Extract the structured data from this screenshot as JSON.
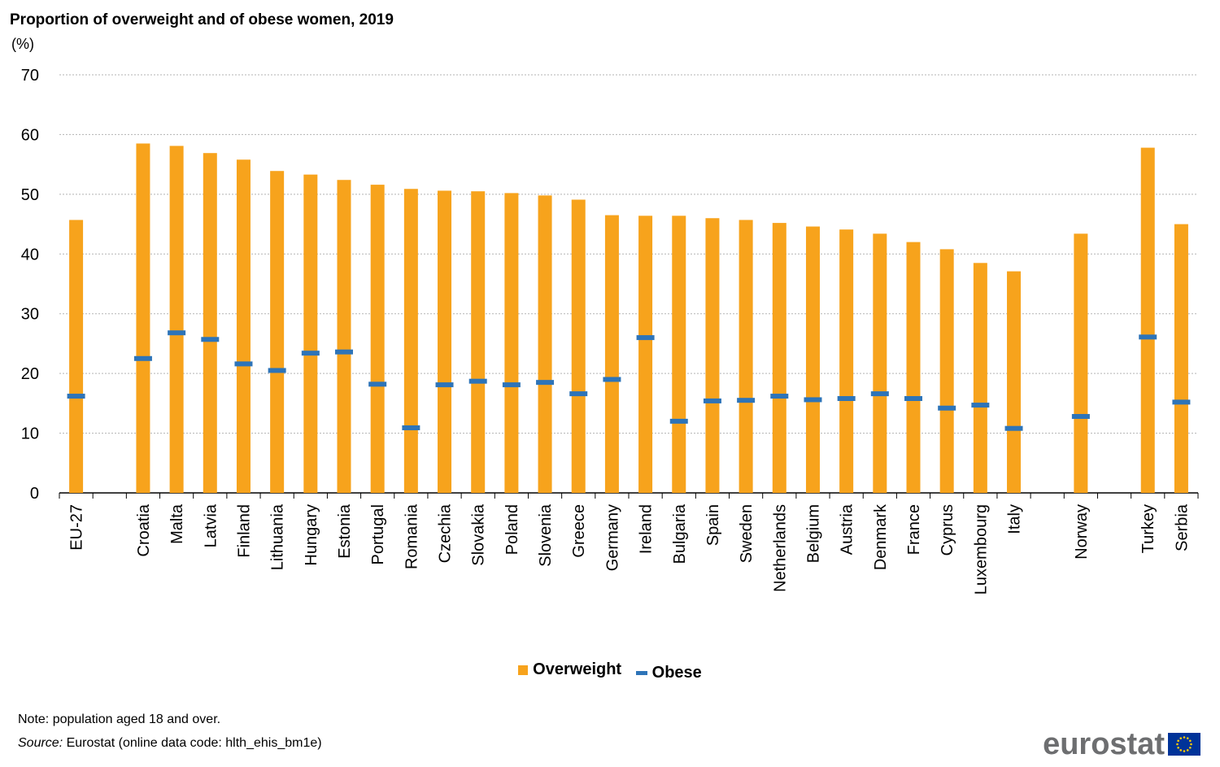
{
  "chart_data": {
    "type": "bar",
    "title": "Proportion of overweight and of obese women, 2019",
    "ylabel": "(%)",
    "ylim": [
      0,
      70
    ],
    "yticks": [
      0,
      10,
      20,
      30,
      40,
      50,
      60,
      70
    ],
    "categories": [
      "EU-27",
      "",
      "Croatia",
      "Malta",
      "Latvia",
      "Finland",
      "Lithuania",
      "Hungary",
      "Estonia",
      "Portugal",
      "Romania",
      "Czechia",
      "Slovakia",
      "Poland",
      "Slovenia",
      "Greece",
      "Germany",
      "Ireland",
      "Bulgaria",
      "Spain",
      "Sweden",
      "Netherlands",
      "Belgium",
      "Austria",
      "Denmark",
      "France",
      "Cyprus",
      "Luxembourg",
      "Italy",
      "",
      "Norway",
      "",
      "Turkey",
      "Serbia"
    ],
    "series": [
      {
        "name": "Overweight",
        "kind": "bar",
        "color": "#f7a31c",
        "values": [
          45.7,
          null,
          58.5,
          58.1,
          56.9,
          55.8,
          53.9,
          53.3,
          52.4,
          51.6,
          50.9,
          50.6,
          50.5,
          50.2,
          49.8,
          49.1,
          46.5,
          46.4,
          46.4,
          46.0,
          45.7,
          45.2,
          44.6,
          44.1,
          43.4,
          42.0,
          40.8,
          38.5,
          37.1,
          null,
          43.4,
          null,
          57.8,
          45.0
        ]
      },
      {
        "name": "Obese",
        "kind": "marker",
        "color": "#2e74b8",
        "values": [
          16.2,
          null,
          22.5,
          26.8,
          25.7,
          21.6,
          20.5,
          23.4,
          23.6,
          18.2,
          10.9,
          18.1,
          18.7,
          18.1,
          18.5,
          16.6,
          19.0,
          26.0,
          12.0,
          15.4,
          15.5,
          16.2,
          15.6,
          15.8,
          16.6,
          15.8,
          14.2,
          14.7,
          10.8,
          null,
          12.8,
          null,
          26.1,
          15.2
        ]
      }
    ]
  },
  "legend": {
    "overweight_label": "Overweight",
    "obese_label": "Obese"
  },
  "footer": {
    "note": "Note: population aged 18 and over.",
    "source_label": "Source:",
    "source_text": " Eurostat (online data code: hlth_ehis_bm1e)"
  },
  "logo": {
    "text": "eurostat"
  },
  "colors": {
    "bar": "#f7a31c",
    "marker": "#2e74b8",
    "grid": "#b3b3b3",
    "logo_text": "#6d6e70",
    "eu_flag": "#003399",
    "eu_star": "#ffcc00"
  }
}
